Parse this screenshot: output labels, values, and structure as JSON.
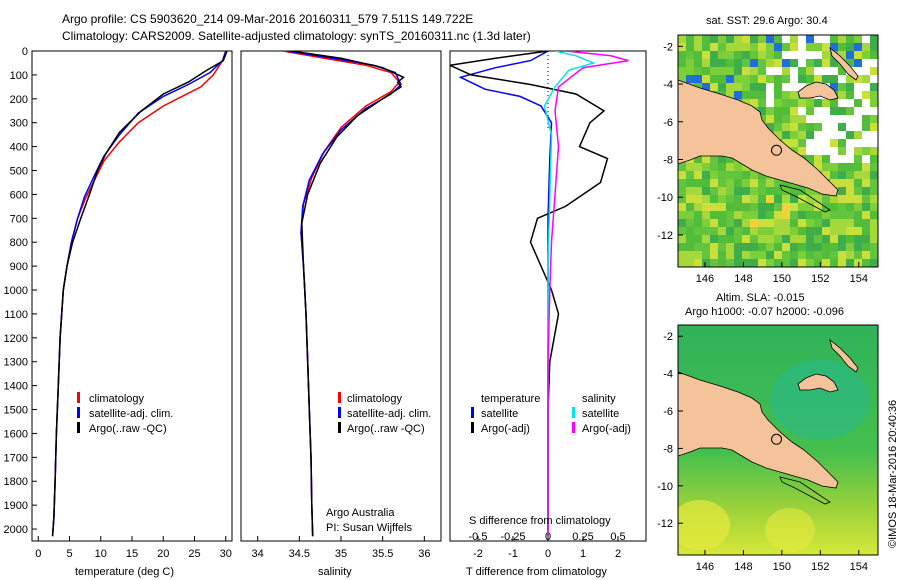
{
  "header": {
    "line1": "Argo profile: CS 5903620_214 09-Mar-2016 20160311_579 7.511S 149.722E",
    "line2": "Climatology: CARS2009. Satellite-adjusted climatology: synTS_20160311.nc (1.3d later)"
  },
  "colors": {
    "climatology": "#ff0000",
    "satellite": "#0000ff",
    "argo": "#000000",
    "sal_sat": "#00e5ee",
    "sal_argo": "#ff00ff",
    "land": "#f4c39a"
  },
  "chart_data": [
    {
      "type": "line",
      "id": "temperature",
      "xlabel": "temperature (deg C)",
      "xlim": [
        -1,
        31
      ],
      "ylim": [
        0,
        2050
      ],
      "xticks": [
        "0",
        "5",
        "10",
        "15",
        "20",
        "25",
        "30"
      ],
      "xtick_values": [
        0,
        5,
        10,
        15,
        20,
        25,
        30
      ],
      "yticks": [
        "0",
        "100",
        "200",
        "300",
        "400",
        "500",
        "600",
        "700",
        "800",
        "900",
        "1000",
        "1100",
        "1200",
        "1300",
        "1400",
        "1500",
        "1600",
        "1700",
        "1800",
        "1900",
        "2000"
      ],
      "ytick_values": [
        0,
        100,
        200,
        300,
        400,
        500,
        600,
        700,
        800,
        900,
        1000,
        1100,
        1200,
        1300,
        1400,
        1500,
        1600,
        1700,
        1800,
        1900,
        2000
      ],
      "legend": [
        "climatology",
        "satellite-adj. clim.",
        "Argo(..raw -QC)"
      ],
      "series": [
        {
          "name": "climatology",
          "x": [
            30,
            29.5,
            28,
            26,
            23,
            20,
            16,
            13,
            10.5,
            9,
            7.5,
            6.3,
            5.3,
            4.6,
            4,
            3.5,
            3.2,
            2.9,
            2.7,
            2.5,
            2.3
          ],
          "y": [
            0,
            40,
            100,
            150,
            190,
            230,
            300,
            380,
            460,
            540,
            620,
            700,
            800,
            900,
            1000,
            1200,
            1400,
            1600,
            1800,
            1950,
            2030
          ]
        },
        {
          "name": "satellite-adj. clim.",
          "x": [
            30,
            29.5,
            27.5,
            24,
            20,
            16,
            13,
            10.5,
            9,
            7.4,
            6.3,
            5.3,
            4.6,
            4,
            3.5,
            3.2,
            2.9,
            2.7,
            2.5,
            2.3
          ],
          "y": [
            0,
            40,
            90,
            140,
            190,
            260,
            350,
            440,
            520,
            610,
            700,
            800,
            900,
            1000,
            1200,
            1400,
            1600,
            1800,
            1950,
            2030
          ]
        },
        {
          "name": "Argo(..raw -QC)",
          "x": [
            30.2,
            29.6,
            27,
            24,
            20,
            16.5,
            13,
            10.8,
            9.5,
            8.2,
            6.8,
            5.5,
            4.6,
            4,
            3.5,
            3.2,
            2.9,
            2.7,
            2.5,
            2.3
          ],
          "y": [
            0,
            40,
            80,
            130,
            180,
            250,
            340,
            430,
            500,
            600,
            700,
            800,
            900,
            1000,
            1200,
            1400,
            1600,
            1800,
            1950,
            2030
          ]
        }
      ]
    },
    {
      "type": "line",
      "id": "salinity",
      "xlabel": "salinity",
      "xlim": [
        33.8,
        36.2
      ],
      "xticks": [
        "34",
        "34.5",
        "35",
        "35.5",
        "36"
      ],
      "xtick_values": [
        34,
        34.5,
        35,
        35.5,
        36
      ],
      "legend": [
        "climatology",
        "satellite-adj. clim.",
        "Argo(..raw -QC)"
      ],
      "annotation": [
        "Argo Australia",
        "PI: Susan Wijffels"
      ],
      "series": [
        {
          "name": "climatology",
          "x": [
            34.3,
            34.8,
            35.3,
            35.6,
            35.7,
            35.6,
            35.3,
            35.0,
            34.8,
            34.65,
            34.55,
            34.52,
            34.55,
            34.58,
            34.6,
            34.62,
            34.64,
            34.65,
            34.66
          ],
          "y": [
            0,
            30,
            60,
            90,
            130,
            170,
            230,
            320,
            420,
            530,
            640,
            760,
            900,
            1100,
            1300,
            1500,
            1700,
            1900,
            2030
          ]
        },
        {
          "name": "satellite-adj. clim.",
          "x": [
            34.35,
            34.9,
            35.4,
            35.65,
            35.72,
            35.6,
            35.3,
            35.0,
            34.78,
            34.62,
            34.54,
            34.52,
            34.55,
            34.58,
            34.6,
            34.62,
            34.64,
            34.65,
            34.66
          ],
          "y": [
            0,
            30,
            60,
            90,
            140,
            180,
            240,
            330,
            430,
            540,
            650,
            760,
            900,
            1100,
            1300,
            1500,
            1700,
            1900,
            2030
          ]
        },
        {
          "name": "Argo(..raw -QC)",
          "x": [
            34.4,
            35.0,
            35.5,
            35.75,
            35.68,
            35.72,
            35.5,
            35.2,
            34.95,
            34.75,
            34.6,
            34.53,
            34.55,
            34.58,
            34.6,
            34.62,
            34.64,
            34.65,
            34.66
          ],
          "y": [
            0,
            30,
            70,
            110,
            130,
            150,
            200,
            270,
            360,
            470,
            600,
            720,
            900,
            1100,
            1300,
            1500,
            1700,
            1900,
            2030
          ]
        }
      ]
    },
    {
      "type": "line",
      "id": "differences",
      "xlabel": "T difference from climatology",
      "xlabel2": "S difference from climatology",
      "xlim": [
        -2.8,
        2.8
      ],
      "xticks": [
        "-2",
        "-1",
        "0",
        "1",
        "2"
      ],
      "xtick_values": [
        -2,
        -1,
        0,
        1,
        2
      ],
      "sticks": [
        "-0.5",
        "-0.25",
        "0",
        "0.25",
        "0.5"
      ],
      "stick_positions": [
        -2,
        -1,
        0,
        1,
        2
      ],
      "legend_title_t": "temperature",
      "legend_title_s": "salinity",
      "legend": [
        "satellite",
        "Argo(-adj)"
      ],
      "series": [
        {
          "name": "T satellite",
          "x": [
            0,
            -0.5,
            -1.5,
            -2.5,
            -1.8,
            -0.8,
            -0.2,
            0.1,
            0.05,
            0,
            0,
            0,
            0,
            0
          ],
          "y": [
            0,
            40,
            70,
            110,
            160,
            190,
            230,
            300,
            450,
            700,
            1000,
            1400,
            1800,
            2030
          ]
        },
        {
          "name": "T Argo(-adj)",
          "x": [
            0,
            -1.5,
            -2.8,
            -2.2,
            -0.5,
            0.8,
            1.6,
            1.2,
            0.9,
            1.7,
            1.5,
            0.5,
            -0.3,
            -0.5,
            0.1,
            0.3,
            0.05,
            0,
            0,
            0
          ],
          "y": [
            0,
            30,
            60,
            100,
            140,
            180,
            250,
            300,
            400,
            450,
            550,
            650,
            700,
            800,
            1000,
            1100,
            1300,
            1500,
            1800,
            2030
          ]
        },
        {
          "name": "S satellite",
          "x": [
            0.2,
            0.8,
            1.3,
            0.6,
            0.2,
            -0.1,
            0.1,
            0.05,
            0,
            0,
            0,
            0,
            0
          ],
          "y": [
            0,
            20,
            50,
            80,
            150,
            230,
            350,
            600,
            900,
            1200,
            1500,
            1800,
            2030
          ]
        },
        {
          "name": "S Argo(-adj)",
          "x": [
            0.5,
            1.8,
            2.3,
            1.0,
            0.3,
            0.2,
            0.3,
            0.2,
            0.1,
            0.05,
            0,
            0,
            0
          ],
          "y": [
            0,
            20,
            40,
            70,
            150,
            250,
            400,
            600,
            800,
            1000,
            1300,
            1700,
            2030
          ]
        }
      ]
    },
    {
      "type": "heatmap",
      "id": "sst_map",
      "title": "sat. SST: 29.6  Argo: 30.4",
      "xlim": [
        144.6,
        155
      ],
      "ylim": [
        -13.7,
        -1.4
      ],
      "xticks": [
        "146",
        "148",
        "150",
        "152",
        "154"
      ],
      "xtick_values": [
        146,
        148,
        150,
        152,
        154
      ],
      "yticks": [
        "-2",
        "-4",
        "-6",
        "-8",
        "-10",
        "-12"
      ],
      "ytick_values": [
        -2,
        -4,
        -6,
        -8,
        -10,
        -12
      ],
      "marker": [
        149.722,
        -7.511
      ]
    },
    {
      "type": "heatmap",
      "id": "sla_map",
      "title": "Altim. SLA: -0.015",
      "title2": "Argo h1000: -0.07  h2000: -0.096",
      "xlim": [
        144.6,
        155
      ],
      "ylim": [
        -13.7,
        -1.4
      ],
      "xticks": [
        "146",
        "148",
        "150",
        "152",
        "154"
      ],
      "xtick_values": [
        146,
        148,
        150,
        152,
        154
      ],
      "yticks": [
        "-2",
        "-4",
        "-6",
        "-8",
        "-10",
        "-12"
      ],
      "ytick_values": [
        -2,
        -4,
        -6,
        -8,
        -10,
        -12
      ],
      "marker": [
        149.722,
        -7.511
      ]
    }
  ],
  "footer": {
    "credit": "©IMOS 18-Mar-2016 20:40:36"
  }
}
